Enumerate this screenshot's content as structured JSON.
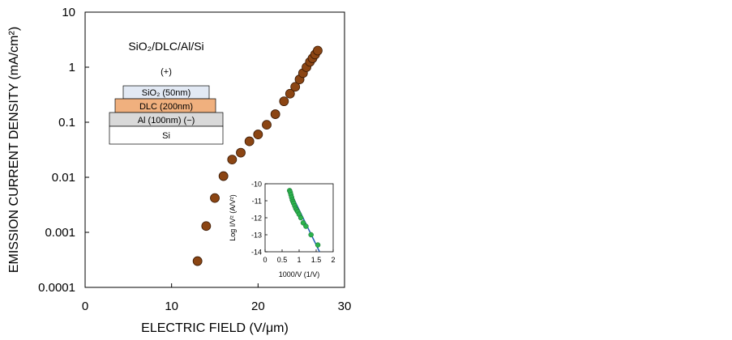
{
  "chart_data": [
    {
      "type": "scatter",
      "xlabel": "ELECTRIC FIELD (V/μm)",
      "ylabel": "EMISSION CURRENT DENSITY (mA/cm²)",
      "annotation": "SiO₂/DLC/Al/Si",
      "xlim": [
        0,
        30
      ],
      "ylim": [
        0.0001,
        10
      ],
      "yscale": "log",
      "grid": false,
      "xticks": [
        "0",
        "10",
        "20",
        "30"
      ],
      "yticks": [
        "0.0001",
        "0.001",
        "0.01",
        "0.1",
        "1",
        "10"
      ],
      "marker_color": "#8B4513",
      "series": [
        {
          "x": [
            13.0,
            14.0,
            15.0,
            16.0,
            17.0,
            18.0,
            19.0,
            20.0,
            21.0,
            22.0,
            23.0,
            23.7,
            24.3,
            24.8,
            25.2,
            25.6,
            26.0,
            26.3,
            26.6,
            26.9
          ],
          "y": [
            0.0003,
            0.0013,
            0.0042,
            0.0105,
            0.021,
            0.028,
            0.045,
            0.06,
            0.09,
            0.14,
            0.24,
            0.33,
            0.44,
            0.6,
            0.78,
            1.0,
            1.25,
            1.45,
            1.7,
            2.0
          ]
        }
      ]
    },
    {
      "type": "scatter",
      "xlabel": "1000/V (1/V)",
      "ylabel": "Log I/V² (A/V²)",
      "xlim": [
        0,
        2
      ],
      "ylim": [
        -14,
        -10
      ],
      "xticks": [
        "0",
        "0.5",
        "1",
        "1.5",
        "2"
      ],
      "yticks": [
        "-10",
        "-11",
        "-12",
        "-13",
        "-14"
      ],
      "marker_color": "#2bb24c",
      "fit_line_color": "#1f5fb4",
      "fit_line": {
        "x": [
          0.7,
          1.6
        ],
        "y": [
          -10.3,
          -14.0
        ]
      },
      "series": [
        {
          "x": [
            0.72,
            0.74,
            0.76,
            0.78,
            0.8,
            0.82,
            0.84,
            0.87,
            0.9,
            0.93,
            0.96,
            1.0,
            1.05,
            1.12,
            1.2,
            1.35,
            1.55
          ],
          "y": [
            -10.4,
            -10.5,
            -10.65,
            -10.8,
            -10.95,
            -11.05,
            -11.15,
            -11.3,
            -11.45,
            -11.55,
            -11.65,
            -11.8,
            -12.0,
            -12.3,
            -12.5,
            -13.0,
            -13.6
          ]
        }
      ]
    }
  ],
  "stack": {
    "label": "SiO₂/DLC/Al/Si",
    "polarity_top": "(+)",
    "layers": [
      {
        "label": "SiO₂ (50nm)",
        "color": "#e2e9f4"
      },
      {
        "label": "DLC (200nm)",
        "color": "#f0b07e"
      },
      {
        "label": "Al (100nm) (−)",
        "color": "#d9d9d9"
      },
      {
        "label": "Si",
        "color": "#ffffff"
      }
    ]
  }
}
